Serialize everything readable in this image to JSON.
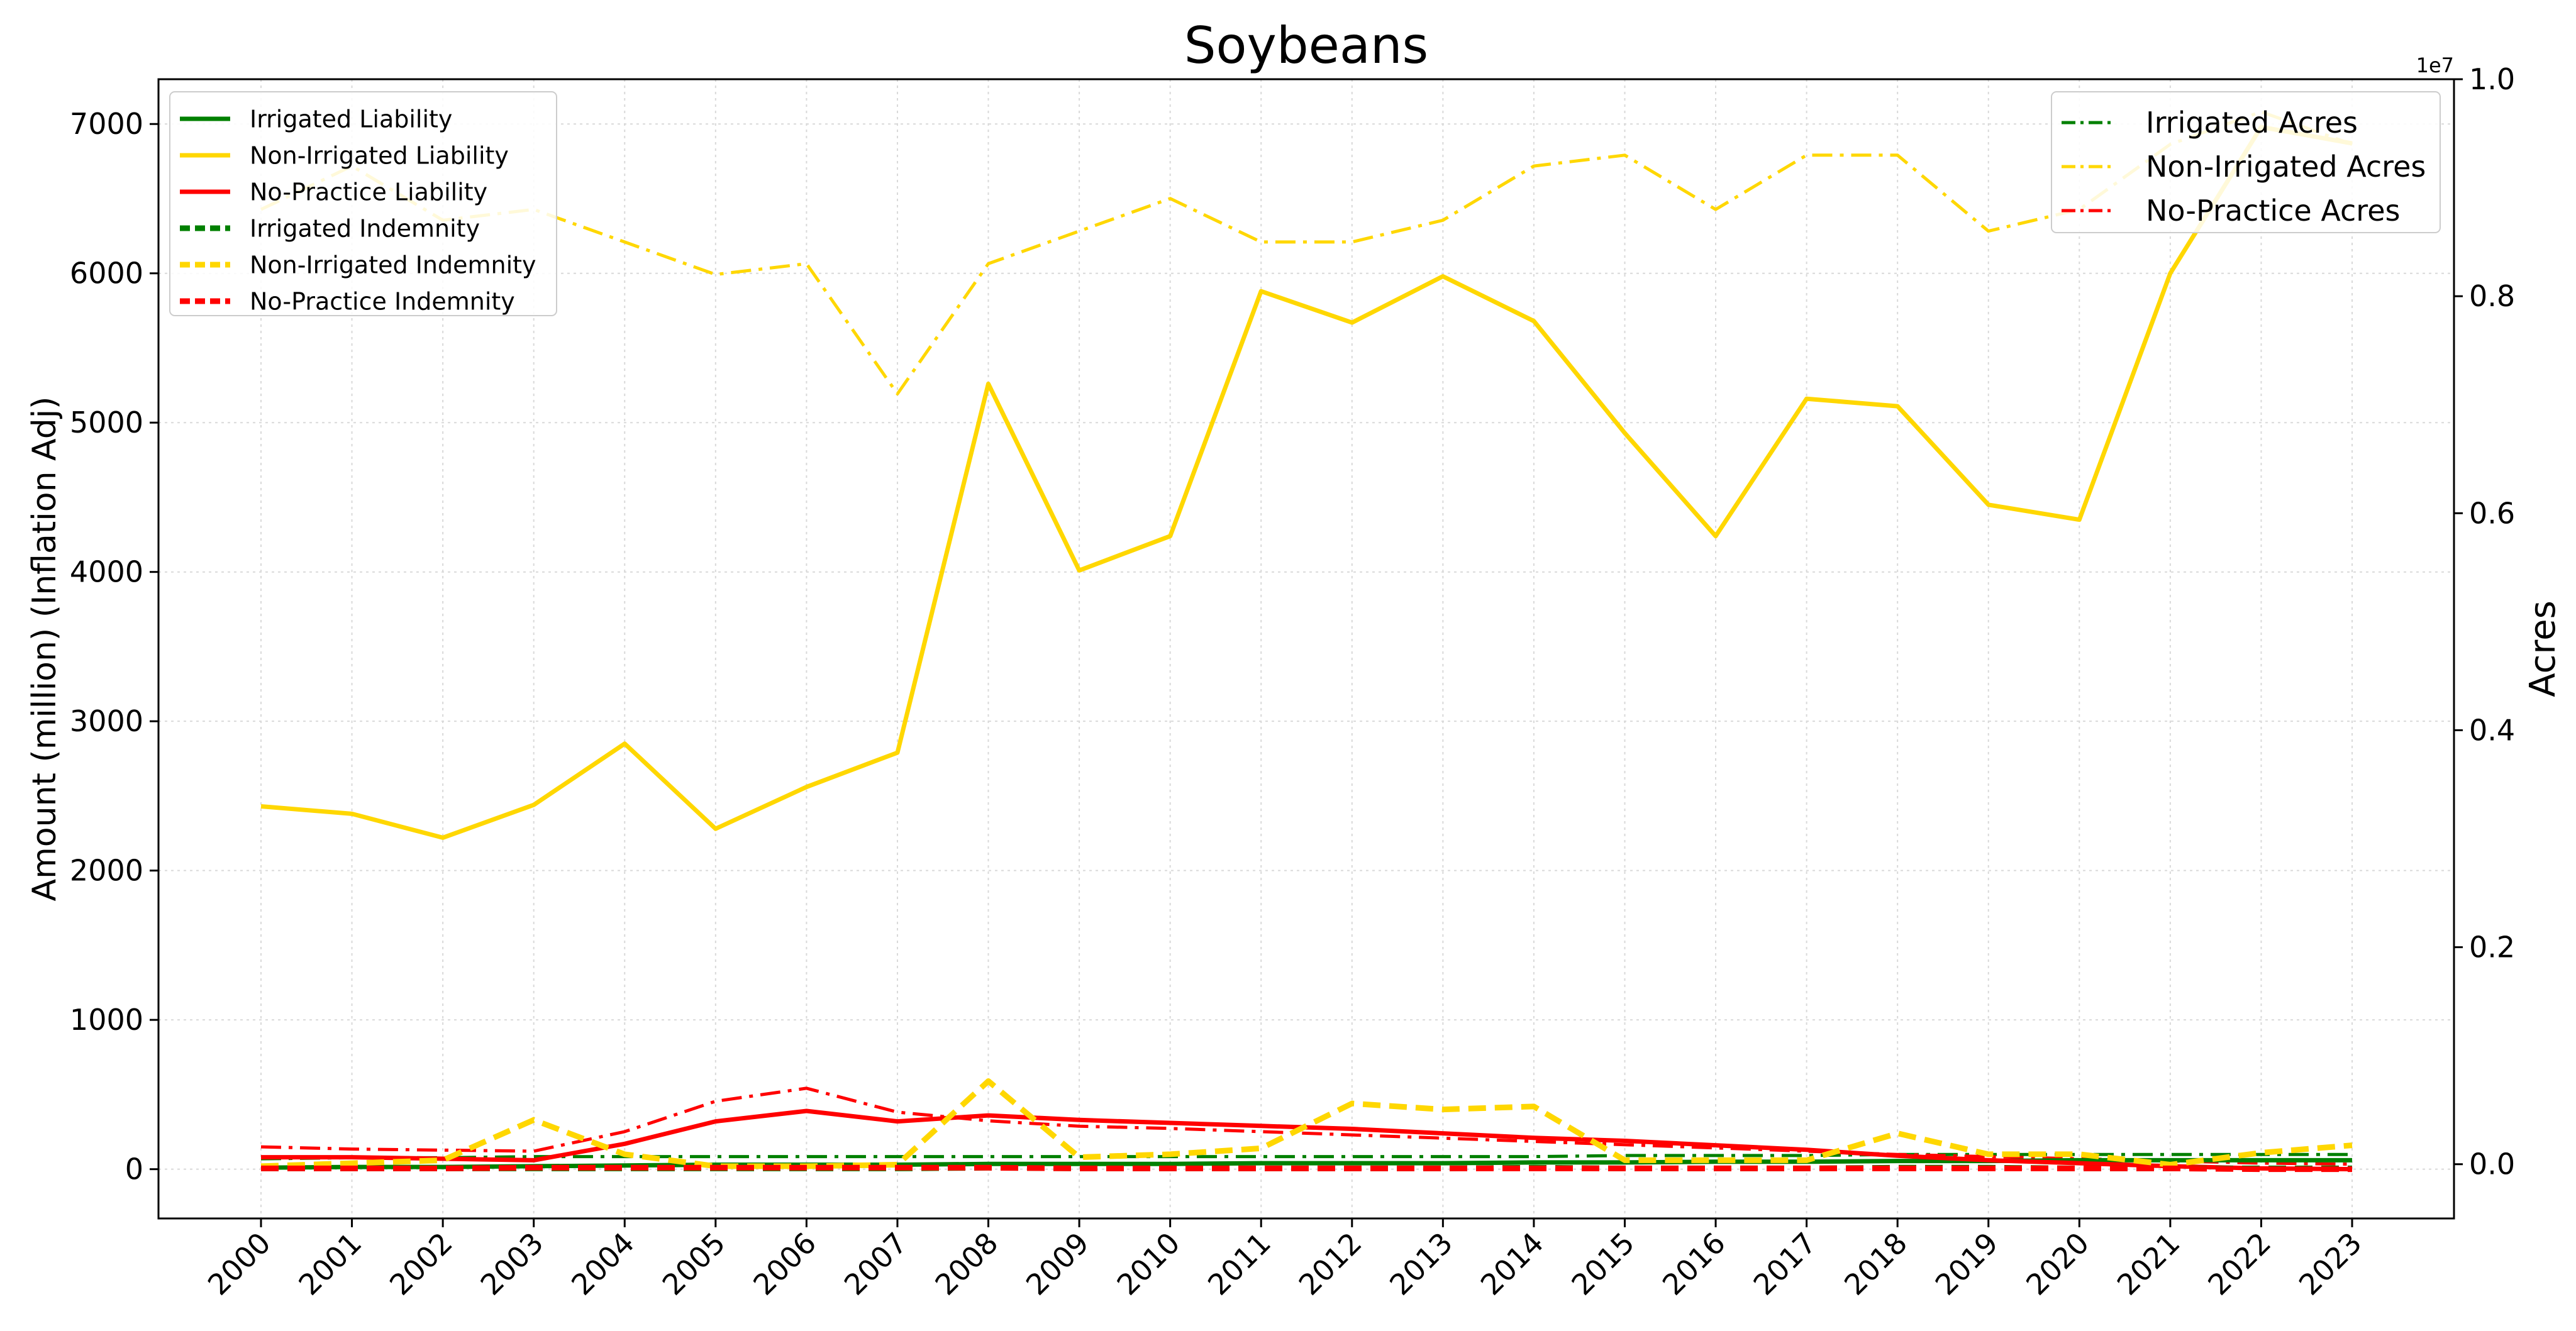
{
  "chart_data": {
    "type": "line",
    "title": "Soybeans",
    "xlabel": "",
    "ylabel": "Amount (million) (Inflation Adj)",
    "y2label": "Acres",
    "y2_offset_label": "1e7",
    "x": [
      "2000",
      "2001",
      "2002",
      "2003",
      "2004",
      "2005",
      "2006",
      "2007",
      "2008",
      "2009",
      "2010",
      "2011",
      "2012",
      "2013",
      "2014",
      "2015",
      "2016",
      "2017",
      "2018",
      "2019",
      "2020",
      "2021",
      "2022",
      "2023"
    ],
    "ylim": [
      -330,
      7300
    ],
    "y_ticks": [
      0,
      1000,
      2000,
      3000,
      4000,
      5000,
      6000,
      7000
    ],
    "y_tick_labels": [
      "0",
      "1000",
      "2000",
      "3000",
      "4000",
      "5000",
      "6000",
      "7000"
    ],
    "y2lim": [
      -0.05,
      1.0
    ],
    "y2_ticks": [
      0.0,
      0.2,
      0.4,
      0.6,
      0.8,
      1.0
    ],
    "y2_tick_labels": [
      "0.0",
      "0.2",
      "0.4",
      "0.6",
      "0.8",
      "1.0"
    ],
    "grid": true,
    "series": [
      {
        "name": "Irrigated Liability",
        "axis": "left",
        "color": "#008000",
        "style": "solid",
        "values": [
          10,
          15,
          15,
          20,
          25,
          30,
          30,
          30,
          35,
          35,
          35,
          40,
          40,
          40,
          45,
          45,
          50,
          50,
          55,
          55,
          60,
          60,
          60,
          60
        ]
      },
      {
        "name": "Non-Irrigated Liability",
        "axis": "left",
        "color": "#FFD700",
        "style": "solid",
        "values": [
          2430,
          2380,
          2220,
          2440,
          2850,
          2280,
          2560,
          2790,
          5260,
          4010,
          4240,
          5880,
          5670,
          5980,
          5680,
          4930,
          4240,
          5160,
          5110,
          4450,
          4350,
          6000,
          6980,
          6870
        ]
      },
      {
        "name": "No-Practice Liability",
        "axis": "left",
        "color": "#FF0000",
        "style": "solid",
        "values": [
          80,
          80,
          70,
          60,
          170,
          320,
          390,
          320,
          360,
          330,
          310,
          290,
          270,
          240,
          210,
          190,
          160,
          130,
          90,
          60,
          40,
          20,
          5,
          0
        ]
      },
      {
        "name": "Irrigated Indemnity",
        "axis": "left",
        "color": "#008000",
        "style": "dashed",
        "values": [
          5,
          5,
          5,
          5,
          5,
          5,
          5,
          5,
          10,
          5,
          5,
          5,
          5,
          5,
          10,
          5,
          5,
          5,
          10,
          10,
          5,
          5,
          5,
          5
        ]
      },
      {
        "name": "Non-Irrigated Indemnity",
        "axis": "left",
        "color": "#FFD700",
        "style": "dashed",
        "values": [
          20,
          40,
          60,
          330,
          100,
          20,
          20,
          30,
          590,
          80,
          100,
          140,
          440,
          400,
          420,
          60,
          60,
          60,
          240,
          100,
          100,
          30,
          110,
          160
        ]
      },
      {
        "name": "No-Practice Indemnity",
        "axis": "left",
        "color": "#FF0000",
        "style": "dashed",
        "values": [
          5,
          5,
          5,
          10,
          10,
          10,
          10,
          10,
          10,
          5,
          5,
          5,
          5,
          5,
          5,
          5,
          5,
          5,
          5,
          5,
          5,
          5,
          0,
          0
        ]
      },
      {
        "name": "Irrigated Acres",
        "axis": "right",
        "color": "#008000",
        "style": "dashdot",
        "values": [
          0.005,
          0.006,
          0.006,
          0.007,
          0.007,
          0.007,
          0.007,
          0.007,
          0.007,
          0.007,
          0.007,
          0.007,
          0.007,
          0.007,
          0.007,
          0.008,
          0.008,
          0.008,
          0.009,
          0.009,
          0.009,
          0.009,
          0.009,
          0.009
        ]
      },
      {
        "name": "Non-Irrigated Acres",
        "axis": "right",
        "color": "#FFD700",
        "style": "dashdot",
        "values": [
          0.88,
          0.92,
          0.87,
          0.88,
          0.85,
          0.82,
          0.83,
          0.71,
          0.83,
          0.86,
          0.89,
          0.85,
          0.85,
          0.87,
          0.92,
          0.93,
          0.88,
          0.93,
          0.93,
          0.86,
          0.88,
          0.94,
          0.97,
          0.94
        ]
      },
      {
        "name": "No-Practice Acres",
        "axis": "right",
        "color": "#FF0000",
        "style": "dashdot",
        "values": [
          0.016,
          0.014,
          0.013,
          0.012,
          0.03,
          0.058,
          0.07,
          0.048,
          0.04,
          0.035,
          0.033,
          0.03,
          0.027,
          0.024,
          0.021,
          0.018,
          0.015,
          0.012,
          0.009,
          0.007,
          0.005,
          0.003,
          0.001,
          0.0
        ]
      }
    ],
    "legend_left": [
      "Irrigated Liability",
      "Non-Irrigated Liability",
      "No-Practice Liability",
      "Irrigated Indemnity",
      "Non-Irrigated Indemnity",
      "No-Practice Indemnity"
    ],
    "legend_right": [
      "Irrigated Acres",
      "Non-Irrigated Acres",
      "No-Practice Acres"
    ],
    "legend_left_position": "top-left",
    "legend_right_position": "top-right"
  }
}
